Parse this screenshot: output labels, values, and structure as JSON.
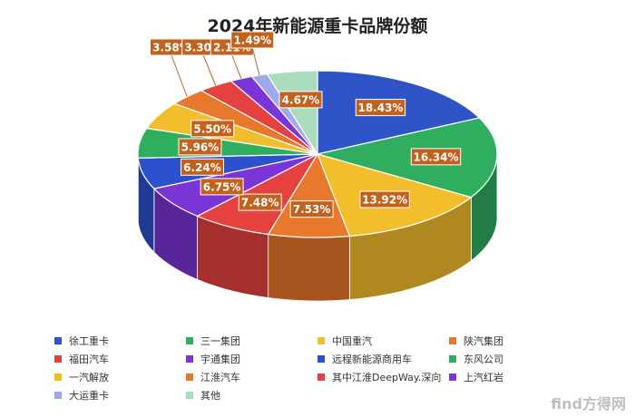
{
  "chart_data": {
    "type": "pie",
    "title": "2024年新能源重卡品牌份额",
    "legend_position": "bottom",
    "slices": [
      {
        "label": "徐工重卡",
        "value": 18.43,
        "value_label": "18.43%",
        "color": "#2f54c8"
      },
      {
        "label": "三一集团",
        "value": 16.34,
        "value_label": "16.34%",
        "color": "#2fae60"
      },
      {
        "label": "中国重汽",
        "value": 13.92,
        "value_label": "13.92%",
        "color": "#f3be2b"
      },
      {
        "label": "陕汽集团",
        "value": 7.53,
        "value_label": "7.53%",
        "color": "#e8782c"
      },
      {
        "label": "福田汽车",
        "value": 7.48,
        "value_label": "7.48%",
        "color": "#e5413f"
      },
      {
        "label": "宇通集团",
        "value": 6.75,
        "value_label": "6.75%",
        "color": "#7b35d6"
      },
      {
        "label": "远程新能源商用车",
        "value": 6.24,
        "value_label": "6.24%",
        "color": "#2d50cc"
      },
      {
        "label": "东风公司",
        "value": 5.96,
        "value_label": "5.96%",
        "color": "#2fae60"
      },
      {
        "label": "一汽解放",
        "value": 5.5,
        "value_label": "5.50%",
        "color": "#f3be2b"
      },
      {
        "label": "江淮汽车",
        "value": 3.58,
        "value_label": "3.58%",
        "color": "#e8782c"
      },
      {
        "label": "其中江淮DeepWay.深向",
        "value": 3.3,
        "value_label": "3.30%",
        "color": "#e5413f"
      },
      {
        "label": "上汽红岩",
        "value": 2.11,
        "value_label": "2.11%",
        "color": "#7b35d6"
      },
      {
        "label": "大运重卡",
        "value": 1.49,
        "value_label": "1.49%",
        "color": "#9fa8ea"
      },
      {
        "label": "其他",
        "value": 4.67,
        "value_label": "4.67%",
        "color": "#a8dcbc"
      }
    ]
  },
  "watermark": "find方得网"
}
